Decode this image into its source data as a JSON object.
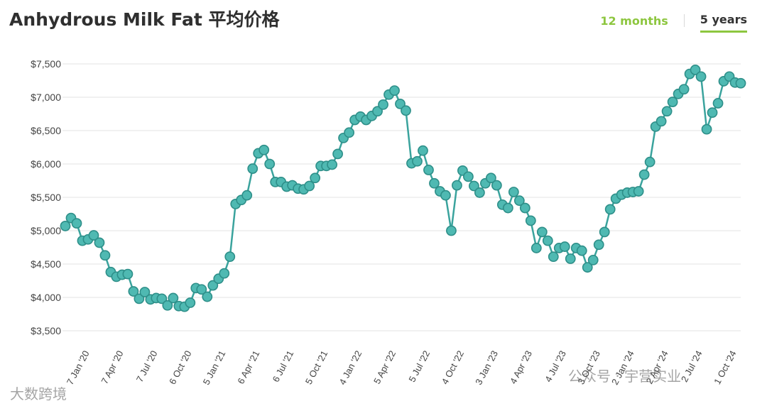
{
  "title": "Anhydrous Milk Fat 平均价格",
  "range_tabs": [
    {
      "label": "12 months",
      "active": false
    },
    {
      "label": "5 years",
      "active": true
    }
  ],
  "watermarks": {
    "left": "大数跨境",
    "right": "公众号 · 宇营实业"
  },
  "colors": {
    "line": "#3aa39d",
    "marker_fill": "#4fb9b2",
    "marker_stroke": "#2e8f89",
    "grid": "#e3e3e3",
    "tab_accent": "#8dc63f",
    "text": "#444444"
  },
  "chart_data": {
    "type": "line",
    "title": "",
    "xlabel": "",
    "ylabel": "",
    "ylim": [
      3500,
      7500
    ],
    "y_ticks": [
      3500,
      4000,
      4500,
      5000,
      5500,
      6000,
      6500,
      7000,
      7500
    ],
    "y_tick_labels": [
      "$3,500",
      "$4,000",
      "$4,500",
      "$5,000",
      "$5,500",
      "$6,000",
      "$6,500",
      "$7,000",
      "$7,500"
    ],
    "grid": true,
    "x_tick_labels": [
      "7 Jan '20",
      "7 Apr '20",
      "7 Jul '20",
      "6 Oct '20",
      "5 Jan '21",
      "6 Apr '21",
      "6 Jul '21",
      "5 Oct '21",
      "4 Jan '22",
      "5 Apr '22",
      "5 Jul '22",
      "4 Oct '22",
      "3 Jan '23",
      "4 Apr '23",
      "4 Jul '23",
      "3 Oct '23",
      "2 Jan '24",
      "2 Apr '24",
      "2 Jul '24",
      "1 Oct '24"
    ],
    "x_tick_index": [
      0,
      6,
      12,
      18,
      24,
      30,
      36,
      42,
      48,
      54,
      60,
      66,
      72,
      78,
      84,
      90,
      96,
      102,
      108,
      114
    ],
    "series": [
      {
        "values": [
          5070,
          5190,
          5110,
          4850,
          4870,
          4930,
          4820,
          4630,
          4380,
          4310,
          4340,
          4350,
          4090,
          3980,
          4080,
          3970,
          3990,
          3980,
          3880,
          3990,
          3870,
          3860,
          3920,
          4140,
          4120,
          4010,
          4180,
          4280,
          4360,
          4610,
          5400,
          5460,
          5530,
          5930,
          6160,
          6210,
          6000,
          5730,
          5730,
          5660,
          5680,
          5630,
          5620,
          5670,
          5790,
          5970,
          5970,
          5990,
          6150,
          6390,
          6470,
          6660,
          6710,
          6660,
          6720,
          6790,
          6890,
          7040,
          7100,
          6900,
          6800,
          6010,
          6040,
          6200,
          5910,
          5710,
          5590,
          5530,
          5000,
          5680,
          5900,
          5810,
          5670,
          5570,
          5710,
          5790,
          5680,
          5390,
          5340,
          5580,
          5450,
          5340,
          5150,
          4740,
          4980,
          4850,
          4610,
          4740,
          4760,
          4580,
          4740,
          4700,
          4450,
          4560,
          4790,
          4980,
          5320,
          5480,
          5540,
          5570,
          5580,
          5590,
          5840,
          6030,
          6560,
          6640,
          6790,
          6930,
          7050,
          7120,
          7350,
          7410,
          7310,
          6520,
          6770,
          6910,
          7240,
          7310,
          7220,
          7210
        ]
      }
    ]
  }
}
